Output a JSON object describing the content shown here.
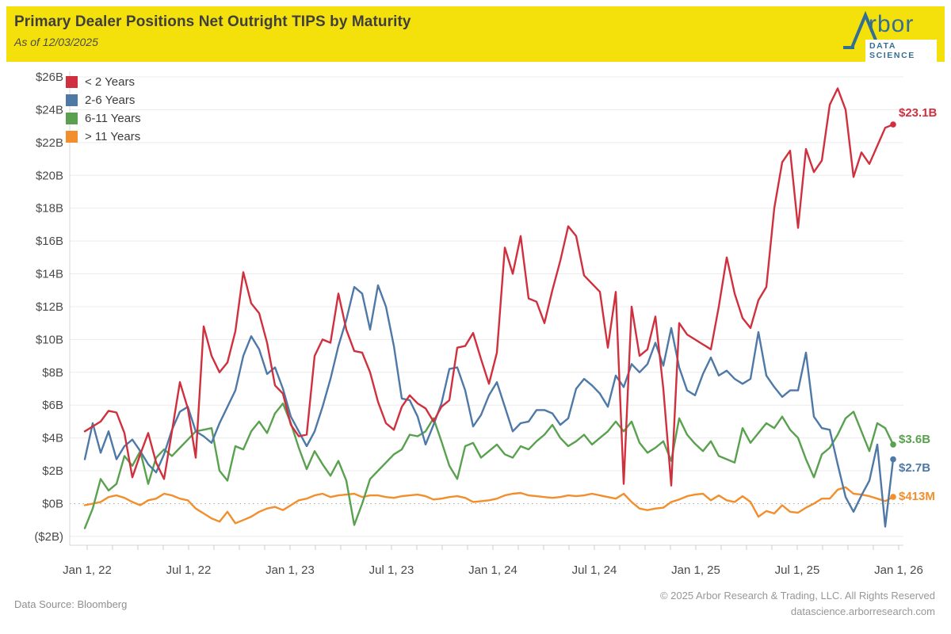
{
  "header": {
    "title": "Primary Dealer Positions Net Outright TIPS by Maturity",
    "subtitle": "As of 12/03/2025",
    "brand": {
      "name": "Arbor",
      "tagline": "DATA SCIENCE"
    }
  },
  "footer": {
    "source": "Data Source: Bloomberg",
    "copyright": "© 2025 Arbor Research & Trading, LLC. All Rights Reserved",
    "site": "datascience.arborresearch.com"
  },
  "chart_data": {
    "type": "line",
    "title": "Primary Dealer Positions Net Outright TIPS by Maturity",
    "subtitle": "As of 12/03/2025",
    "unit": "USD billions",
    "grid": true,
    "legend_position": "top-left",
    "y_tick_labels": [
      "$26B",
      "$24B",
      "$22B",
      "$20B",
      "$18B",
      "$16B",
      "$14B",
      "$12B",
      "$10B",
      "$8B",
      "$6B",
      "$4B",
      "$2B",
      "$0B",
      "($2B)"
    ],
    "y_tick_values": [
      26,
      24,
      22,
      20,
      18,
      16,
      14,
      12,
      10,
      8,
      6,
      4,
      2,
      0,
      -2
    ],
    "ylim": [
      -2.4,
      26.4
    ],
    "x_tick_labels": [
      "Jan 1, 22",
      "Jul 1, 22",
      "Jan 1, 23",
      "Jul 1, 23",
      "Jan 1, 24",
      "Jul 1, 24",
      "Jan 1, 25",
      "Jul 1, 25",
      "Jan 1, 26"
    ],
    "x_range_note": "weekly observations Jan 2022 through Dec 3, 2025",
    "series": [
      {
        "name": "< 2 Years",
        "color": "#d0303e",
        "end_label": "$23.1B",
        "end_value": 23.1,
        "values": [
          4.4,
          4.7,
          5.0,
          5.65,
          5.55,
          4.3,
          1.6,
          3.0,
          4.3,
          2.5,
          1.5,
          4.4,
          7.4,
          5.8,
          2.8,
          10.8,
          9.0,
          8.0,
          8.6,
          10.5,
          14.1,
          12.2,
          11.6,
          9.8,
          7.2,
          6.7,
          4.8,
          4.1,
          4.2,
          9.0,
          10.0,
          9.8,
          12.8,
          10.6,
          9.3,
          9.2,
          8.0,
          6.2,
          4.9,
          4.5,
          5.9,
          6.6,
          6.1,
          5.8,
          5.0,
          5.9,
          6.3,
          9.5,
          9.6,
          10.4,
          8.8,
          7.3,
          9.2,
          15.6,
          14.0,
          16.3,
          12.5,
          12.3,
          11.0,
          13.0,
          14.8,
          16.9,
          16.3,
          13.9,
          13.4,
          12.9,
          9.5,
          12.9,
          1.2,
          12.0,
          9.0,
          9.4,
          11.4,
          7.0,
          1.1,
          11.0,
          10.3,
          10.0,
          9.7,
          9.4,
          12.0,
          15.0,
          12.8,
          11.3,
          10.7,
          12.4,
          13.2,
          18.0,
          20.8,
          21.5,
          16.8,
          21.6,
          20.2,
          20.9,
          24.3,
          25.3,
          24.0,
          19.9,
          21.4,
          20.7,
          21.8,
          22.9,
          23.1
        ]
      },
      {
        "name": "2-6 Years",
        "color": "#4e79a7",
        "end_label": "$2.7B",
        "end_value": 2.7,
        "values": [
          2.7,
          4.9,
          3.1,
          4.4,
          2.7,
          3.5,
          3.9,
          3.2,
          2.4,
          1.9,
          3.0,
          4.5,
          5.6,
          5.9,
          4.4,
          4.1,
          3.7,
          4.9,
          5.9,
          6.9,
          9.0,
          10.2,
          9.4,
          7.9,
          8.3,
          7.0,
          5.3,
          4.4,
          3.5,
          4.4,
          5.9,
          7.6,
          9.6,
          11.2,
          13.2,
          12.8,
          10.6,
          13.3,
          12.0,
          9.6,
          6.4,
          6.3,
          5.3,
          3.6,
          4.8,
          6.1,
          8.2,
          8.3,
          6.9,
          4.7,
          5.4,
          6.6,
          7.4,
          5.9,
          4.4,
          4.9,
          5.0,
          5.7,
          5.7,
          5.5,
          4.8,
          5.2,
          7.0,
          7.6,
          7.2,
          6.7,
          5.9,
          7.8,
          7.1,
          8.5,
          8.0,
          8.5,
          9.8,
          8.4,
          10.7,
          8.3,
          6.9,
          6.6,
          7.9,
          8.9,
          7.8,
          8.1,
          7.6,
          7.3,
          7.6,
          10.45,
          7.8,
          7.1,
          6.5,
          6.9,
          6.9,
          9.2,
          5.3,
          4.6,
          4.5,
          2.4,
          0.4,
          -0.5,
          0.5,
          1.4,
          3.6,
          -1.4,
          2.7
        ]
      },
      {
        "name": "6-11 Years",
        "color": "#59a14f",
        "end_label": "$3.6B",
        "end_value": 3.6,
        "values": [
          -1.5,
          -0.3,
          1.5,
          0.8,
          1.2,
          2.9,
          2.3,
          3.2,
          1.2,
          2.8,
          3.3,
          2.9,
          3.4,
          3.9,
          4.4,
          4.5,
          4.6,
          2.0,
          1.4,
          3.5,
          3.3,
          4.4,
          5.0,
          4.3,
          5.5,
          6.1,
          4.9,
          3.4,
          2.1,
          3.2,
          2.4,
          1.7,
          2.6,
          1.4,
          -1.3,
          0.0,
          1.5,
          2.0,
          2.5,
          3.0,
          3.3,
          4.2,
          4.1,
          4.4,
          5.2,
          3.8,
          2.3,
          1.5,
          3.5,
          3.7,
          2.8,
          3.2,
          3.6,
          3.0,
          2.8,
          3.5,
          3.3,
          3.8,
          4.2,
          4.8,
          4.0,
          3.5,
          3.8,
          4.2,
          3.6,
          4.0,
          4.4,
          5.0,
          4.4,
          5.0,
          3.7,
          3.1,
          3.4,
          3.8,
          2.6,
          5.2,
          4.2,
          3.65,
          3.2,
          3.8,
          2.9,
          2.7,
          2.5,
          4.6,
          3.7,
          4.3,
          4.9,
          4.6,
          5.3,
          4.5,
          4.0,
          2.7,
          1.6,
          3.0,
          3.4,
          4.2,
          5.2,
          5.6,
          4.4,
          3.2,
          4.9,
          4.6,
          3.6
        ]
      },
      {
        "name": "> 11 Years",
        "color": "#f28e2b",
        "end_label": "$413M",
        "end_value": 0.413,
        "values": [
          -0.1,
          0.0,
          0.1,
          0.4,
          0.5,
          0.35,
          0.1,
          -0.1,
          0.2,
          0.3,
          0.6,
          0.5,
          0.3,
          0.2,
          -0.3,
          -0.6,
          -0.9,
          -1.1,
          -0.5,
          -1.2,
          -1.0,
          -0.8,
          -0.5,
          -0.3,
          -0.2,
          -0.4,
          -0.1,
          0.2,
          0.3,
          0.5,
          0.6,
          0.4,
          0.5,
          0.55,
          0.6,
          0.4,
          0.5,
          0.5,
          0.4,
          0.35,
          0.45,
          0.5,
          0.55,
          0.45,
          0.25,
          0.3,
          0.4,
          0.45,
          0.35,
          0.1,
          0.15,
          0.2,
          0.3,
          0.5,
          0.6,
          0.65,
          0.5,
          0.45,
          0.4,
          0.35,
          0.4,
          0.5,
          0.45,
          0.5,
          0.6,
          0.5,
          0.4,
          0.3,
          0.6,
          0.1,
          -0.3,
          -0.4,
          -0.3,
          -0.25,
          0.1,
          0.25,
          0.45,
          0.55,
          0.6,
          0.2,
          0.5,
          0.2,
          0.1,
          0.45,
          0.1,
          -0.8,
          -0.45,
          -0.6,
          -0.1,
          -0.5,
          -0.55,
          -0.25,
          0.0,
          0.3,
          0.3,
          0.85,
          1.0,
          0.6,
          0.55,
          0.45,
          0.3,
          0.15,
          0.41
        ]
      }
    ]
  }
}
